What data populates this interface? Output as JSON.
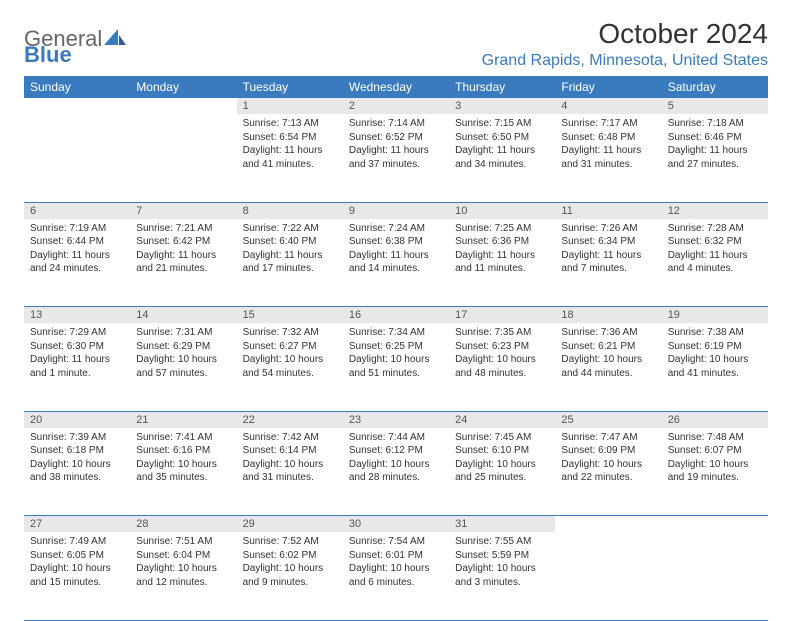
{
  "logo": {
    "part1": "General",
    "part2": "Blue"
  },
  "title": "October 2024",
  "location": "Grand Rapids, Minnesota, United States",
  "weekday_headers": [
    "Sunday",
    "Monday",
    "Tuesday",
    "Wednesday",
    "Thursday",
    "Friday",
    "Saturday"
  ],
  "colors": {
    "header_bg": "#3a7bbf",
    "header_text": "#ffffff",
    "daynum_bg": "#e8e8e8",
    "row_border": "#3a7bbf",
    "location_text": "#3a7bbf"
  },
  "weeks": [
    [
      null,
      null,
      {
        "n": "1",
        "sunrise": "Sunrise: 7:13 AM",
        "sunset": "Sunset: 6:54 PM",
        "daylight": "Daylight: 11 hours and 41 minutes."
      },
      {
        "n": "2",
        "sunrise": "Sunrise: 7:14 AM",
        "sunset": "Sunset: 6:52 PM",
        "daylight": "Daylight: 11 hours and 37 minutes."
      },
      {
        "n": "3",
        "sunrise": "Sunrise: 7:15 AM",
        "sunset": "Sunset: 6:50 PM",
        "daylight": "Daylight: 11 hours and 34 minutes."
      },
      {
        "n": "4",
        "sunrise": "Sunrise: 7:17 AM",
        "sunset": "Sunset: 6:48 PM",
        "daylight": "Daylight: 11 hours and 31 minutes."
      },
      {
        "n": "5",
        "sunrise": "Sunrise: 7:18 AM",
        "sunset": "Sunset: 6:46 PM",
        "daylight": "Daylight: 11 hours and 27 minutes."
      }
    ],
    [
      {
        "n": "6",
        "sunrise": "Sunrise: 7:19 AM",
        "sunset": "Sunset: 6:44 PM",
        "daylight": "Daylight: 11 hours and 24 minutes."
      },
      {
        "n": "7",
        "sunrise": "Sunrise: 7:21 AM",
        "sunset": "Sunset: 6:42 PM",
        "daylight": "Daylight: 11 hours and 21 minutes."
      },
      {
        "n": "8",
        "sunrise": "Sunrise: 7:22 AM",
        "sunset": "Sunset: 6:40 PM",
        "daylight": "Daylight: 11 hours and 17 minutes."
      },
      {
        "n": "9",
        "sunrise": "Sunrise: 7:24 AM",
        "sunset": "Sunset: 6:38 PM",
        "daylight": "Daylight: 11 hours and 14 minutes."
      },
      {
        "n": "10",
        "sunrise": "Sunrise: 7:25 AM",
        "sunset": "Sunset: 6:36 PM",
        "daylight": "Daylight: 11 hours and 11 minutes."
      },
      {
        "n": "11",
        "sunrise": "Sunrise: 7:26 AM",
        "sunset": "Sunset: 6:34 PM",
        "daylight": "Daylight: 11 hours and 7 minutes."
      },
      {
        "n": "12",
        "sunrise": "Sunrise: 7:28 AM",
        "sunset": "Sunset: 6:32 PM",
        "daylight": "Daylight: 11 hours and 4 minutes."
      }
    ],
    [
      {
        "n": "13",
        "sunrise": "Sunrise: 7:29 AM",
        "sunset": "Sunset: 6:30 PM",
        "daylight": "Daylight: 11 hours and 1 minute."
      },
      {
        "n": "14",
        "sunrise": "Sunrise: 7:31 AM",
        "sunset": "Sunset: 6:29 PM",
        "daylight": "Daylight: 10 hours and 57 minutes."
      },
      {
        "n": "15",
        "sunrise": "Sunrise: 7:32 AM",
        "sunset": "Sunset: 6:27 PM",
        "daylight": "Daylight: 10 hours and 54 minutes."
      },
      {
        "n": "16",
        "sunrise": "Sunrise: 7:34 AM",
        "sunset": "Sunset: 6:25 PM",
        "daylight": "Daylight: 10 hours and 51 minutes."
      },
      {
        "n": "17",
        "sunrise": "Sunrise: 7:35 AM",
        "sunset": "Sunset: 6:23 PM",
        "daylight": "Daylight: 10 hours and 48 minutes."
      },
      {
        "n": "18",
        "sunrise": "Sunrise: 7:36 AM",
        "sunset": "Sunset: 6:21 PM",
        "daylight": "Daylight: 10 hours and 44 minutes."
      },
      {
        "n": "19",
        "sunrise": "Sunrise: 7:38 AM",
        "sunset": "Sunset: 6:19 PM",
        "daylight": "Daylight: 10 hours and 41 minutes."
      }
    ],
    [
      {
        "n": "20",
        "sunrise": "Sunrise: 7:39 AM",
        "sunset": "Sunset: 6:18 PM",
        "daylight": "Daylight: 10 hours and 38 minutes."
      },
      {
        "n": "21",
        "sunrise": "Sunrise: 7:41 AM",
        "sunset": "Sunset: 6:16 PM",
        "daylight": "Daylight: 10 hours and 35 minutes."
      },
      {
        "n": "22",
        "sunrise": "Sunrise: 7:42 AM",
        "sunset": "Sunset: 6:14 PM",
        "daylight": "Daylight: 10 hours and 31 minutes."
      },
      {
        "n": "23",
        "sunrise": "Sunrise: 7:44 AM",
        "sunset": "Sunset: 6:12 PM",
        "daylight": "Daylight: 10 hours and 28 minutes."
      },
      {
        "n": "24",
        "sunrise": "Sunrise: 7:45 AM",
        "sunset": "Sunset: 6:10 PM",
        "daylight": "Daylight: 10 hours and 25 minutes."
      },
      {
        "n": "25",
        "sunrise": "Sunrise: 7:47 AM",
        "sunset": "Sunset: 6:09 PM",
        "daylight": "Daylight: 10 hours and 22 minutes."
      },
      {
        "n": "26",
        "sunrise": "Sunrise: 7:48 AM",
        "sunset": "Sunset: 6:07 PM",
        "daylight": "Daylight: 10 hours and 19 minutes."
      }
    ],
    [
      {
        "n": "27",
        "sunrise": "Sunrise: 7:49 AM",
        "sunset": "Sunset: 6:05 PM",
        "daylight": "Daylight: 10 hours and 15 minutes."
      },
      {
        "n": "28",
        "sunrise": "Sunrise: 7:51 AM",
        "sunset": "Sunset: 6:04 PM",
        "daylight": "Daylight: 10 hours and 12 minutes."
      },
      {
        "n": "29",
        "sunrise": "Sunrise: 7:52 AM",
        "sunset": "Sunset: 6:02 PM",
        "daylight": "Daylight: 10 hours and 9 minutes."
      },
      {
        "n": "30",
        "sunrise": "Sunrise: 7:54 AM",
        "sunset": "Sunset: 6:01 PM",
        "daylight": "Daylight: 10 hours and 6 minutes."
      },
      {
        "n": "31",
        "sunrise": "Sunrise: 7:55 AM",
        "sunset": "Sunset: 5:59 PM",
        "daylight": "Daylight: 10 hours and 3 minutes."
      },
      null,
      null
    ]
  ]
}
